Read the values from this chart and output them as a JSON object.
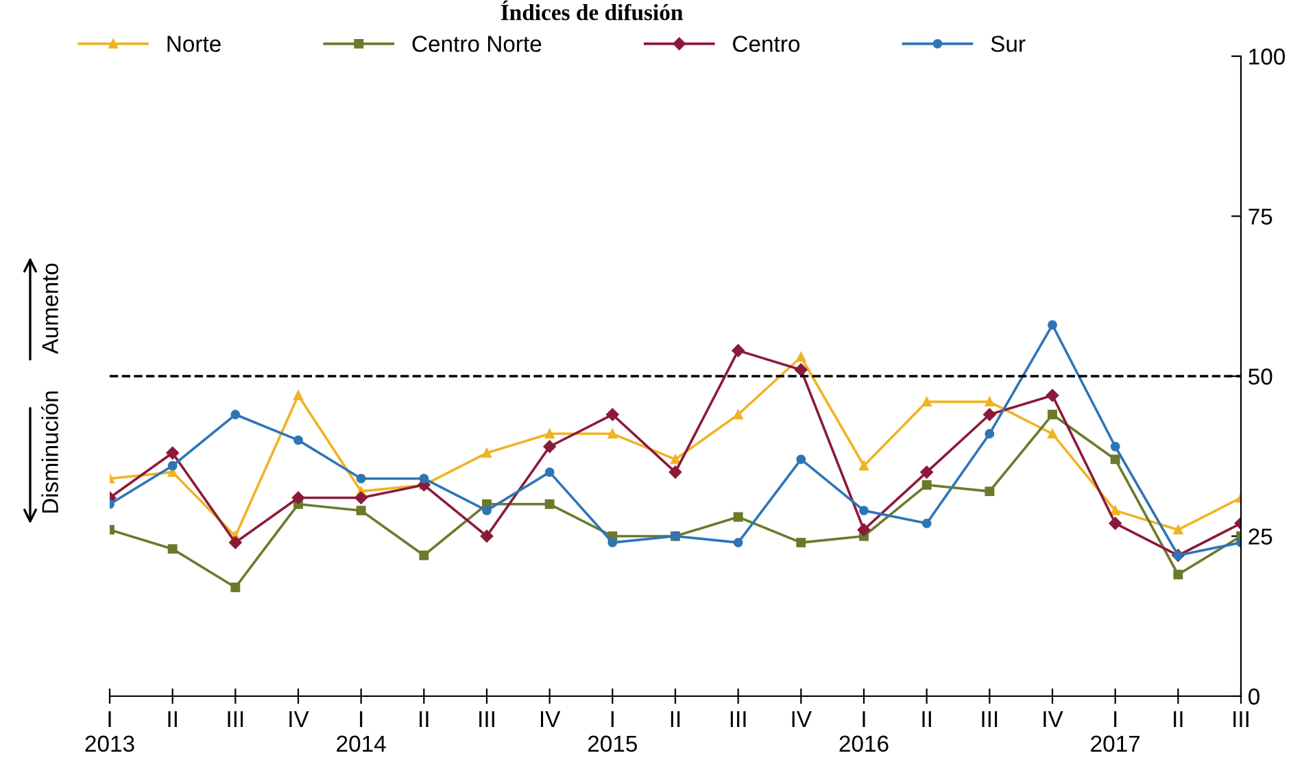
{
  "chart_data": {
    "type": "line",
    "title": "Índices de difusión",
    "categories": [
      "I\n2013",
      "II",
      "III",
      "IV",
      "I\n2014",
      "II",
      "III",
      "IV",
      "I\n2015",
      "II",
      "III",
      "IV",
      "I\n2016",
      "II",
      "III",
      "IV",
      "I\n2017",
      "II",
      "III"
    ],
    "series": [
      {
        "name": "Norte",
        "color": "#f0b323",
        "marker": "triangle",
        "values": [
          34,
          35,
          25,
          47,
          32,
          33,
          38,
          41,
          41,
          37,
          44,
          53,
          36,
          46,
          46,
          41,
          29,
          26,
          31
        ]
      },
      {
        "name": "Centro Norte",
        "color": "#6b7a2a",
        "marker": "square",
        "values": [
          26,
          23,
          17,
          30,
          29,
          22,
          30,
          30,
          25,
          25,
          28,
          24,
          25,
          33,
          32,
          44,
          37,
          19,
          25
        ]
      },
      {
        "name": "Centro",
        "color": "#8b1a3a",
        "marker": "diamond",
        "values": [
          31,
          38,
          24,
          31,
          31,
          33,
          25,
          39,
          44,
          35,
          54,
          51,
          26,
          35,
          44,
          47,
          27,
          22,
          27
        ]
      },
      {
        "name": "Sur",
        "color": "#2e75b6",
        "marker": "circle",
        "values": [
          30,
          36,
          44,
          40,
          34,
          34,
          29,
          35,
          24,
          25,
          24,
          37,
          29,
          27,
          41,
          58,
          39,
          22,
          24
        ]
      }
    ],
    "ylim": [
      0,
      100
    ],
    "yticks": [
      0,
      25,
      50,
      75,
      100
    ],
    "ref_lines": [
      {
        "axis": "y",
        "value": 50,
        "color": "#000000",
        "line_style": "dashed"
      }
    ],
    "annotations": [
      "Aumento",
      "Disminución"
    ],
    "grid": false,
    "legend": "top",
    "line_style": "solid"
  }
}
